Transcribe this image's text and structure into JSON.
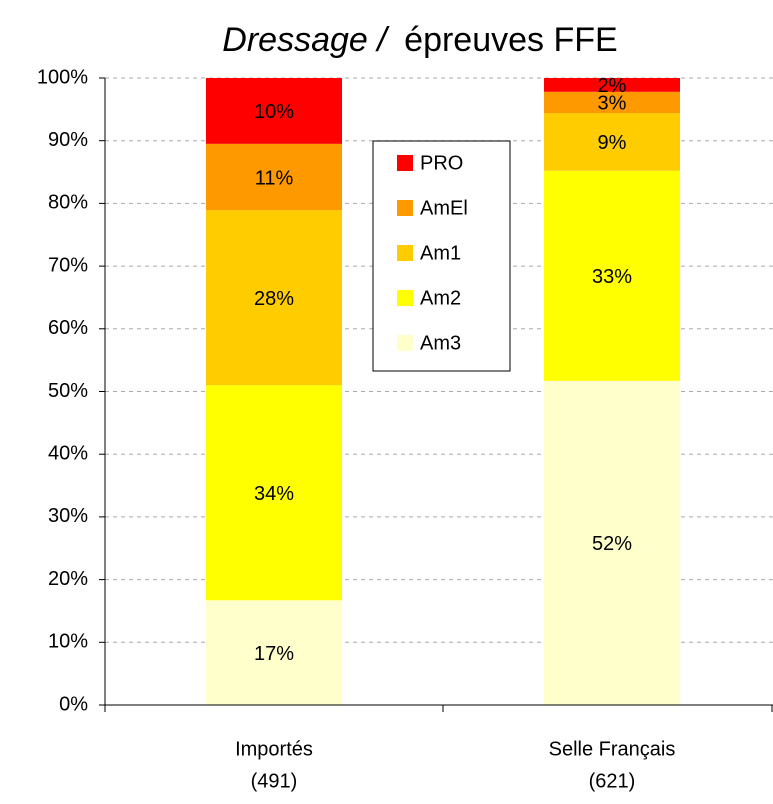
{
  "chart_data": {
    "type": "stacked_bar",
    "title": [
      "Dressage /",
      "épreuves FFE"
    ],
    "categories": [
      [
        "Importés",
        "(491)"
      ],
      [
        "Selle Français",
        "(621)"
      ]
    ],
    "series": [
      {
        "name": "Am3",
        "color": "#ffffcc",
        "values": [
          16.7,
          51.7
        ],
        "value_labels": [
          "17%",
          "52%"
        ]
      },
      {
        "name": "Am2",
        "color": "#ffff00",
        "values": [
          34.3,
          33.5
        ],
        "value_labels": [
          "34%",
          "33%"
        ]
      },
      {
        "name": "Am1",
        "color": "#ffcc00",
        "values": [
          27.9,
          9.2
        ],
        "value_labels": [
          "28%",
          "9%"
        ]
      },
      {
        "name": "AmEl",
        "color": "#ff9900",
        "values": [
          10.6,
          3.4
        ],
        "value_labels": [
          "11%",
          "3%"
        ]
      },
      {
        "name": "PRO",
        "color": "#ff0000",
        "values": [
          10.5,
          2.2
        ],
        "value_labels": [
          "10%",
          "2%"
        ]
      }
    ],
    "ylim": [
      0,
      100
    ],
    "yticks": [
      {
        "value": 0,
        "label": "0%"
      },
      {
        "value": 10,
        "label": "10%"
      },
      {
        "value": 20,
        "label": "20%"
      },
      {
        "value": 30,
        "label": "30%"
      },
      {
        "value": 40,
        "label": "40%"
      },
      {
        "value": 50,
        "label": "50%"
      },
      {
        "value": 60,
        "label": "60%"
      },
      {
        "value": 70,
        "label": "70%"
      },
      {
        "value": 80,
        "label": "80%"
      },
      {
        "value": 90,
        "label": "90%"
      },
      {
        "value": 100,
        "label": "100%"
      }
    ],
    "grid": true
  }
}
